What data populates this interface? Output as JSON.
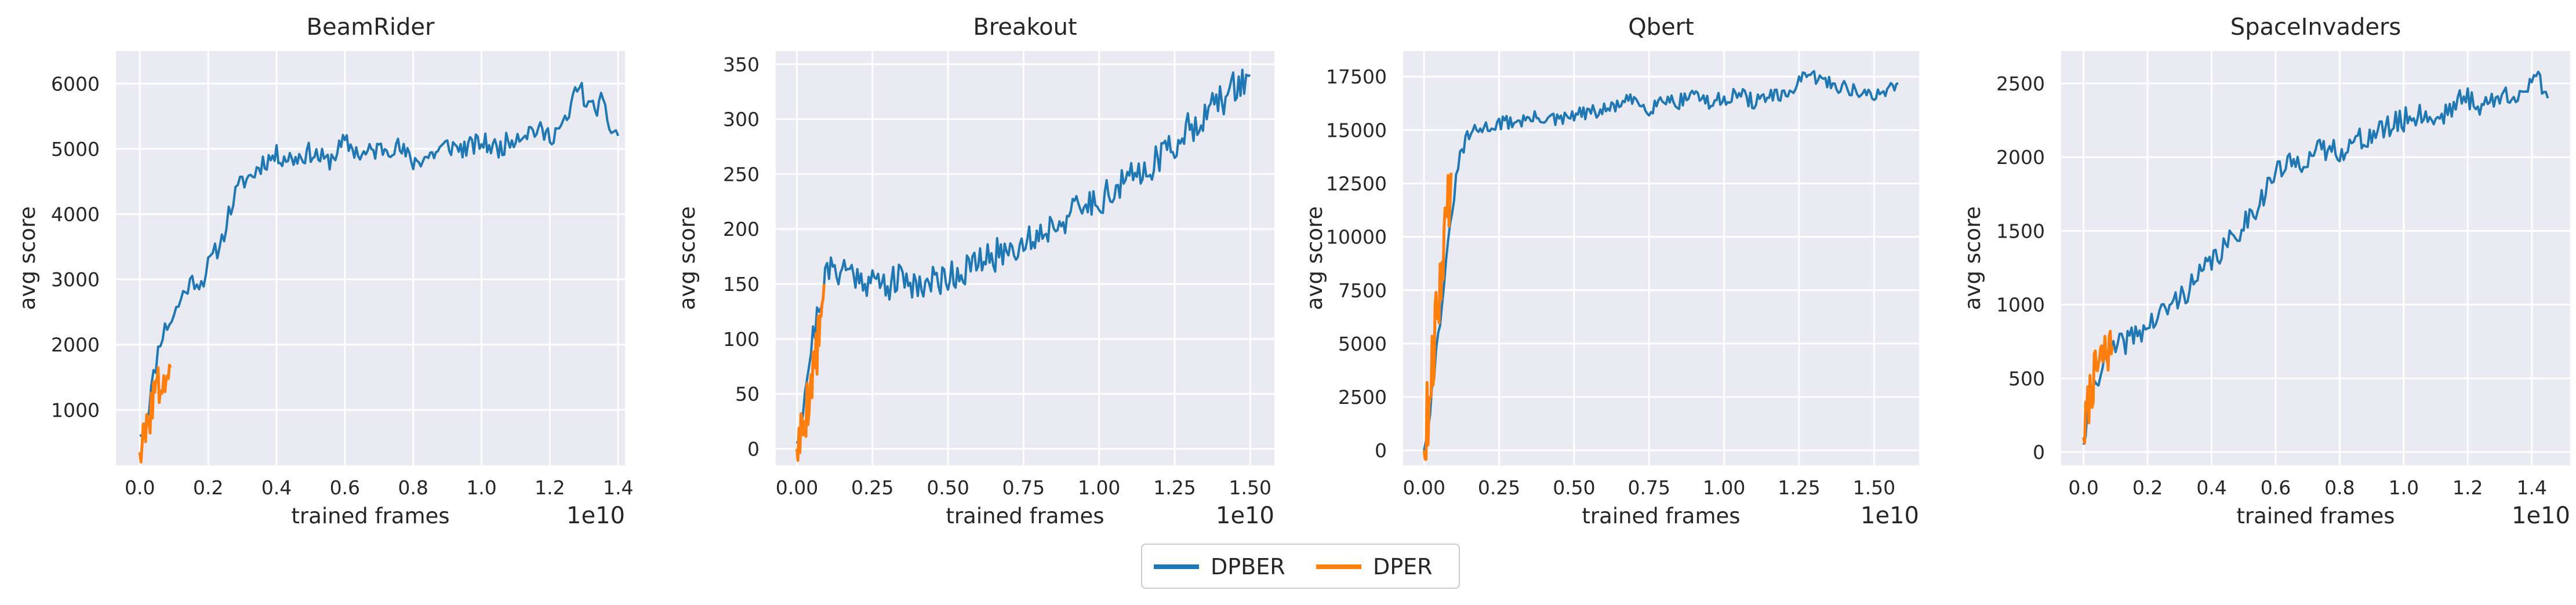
{
  "colors": {
    "DPBER": "#1f77b4",
    "DPER": "#ff7f0e",
    "plot_bg": "#eaeaf2",
    "grid": "#ffffff",
    "text": "#262626"
  },
  "legend": {
    "position": "bottom-center",
    "entries": [
      {
        "name": "DPBER",
        "color": "#1f77b4"
      },
      {
        "name": "DPER",
        "color": "#ff7f0e"
      }
    ]
  },
  "chart_data": [
    {
      "type": "line",
      "title": "BeamRider",
      "xlabel": "trained frames",
      "ylabel": "avg score",
      "x_offset_label": "1e10",
      "xlim": [
        -0.07,
        1.42
      ],
      "ylim": [
        150,
        6500
      ],
      "grid": true,
      "xticks": [
        0.0,
        0.2,
        0.4,
        0.6,
        0.8,
        1.0,
        1.2,
        1.4
      ],
      "xtick_labels": [
        "0.0",
        "0.2",
        "0.4",
        "0.6",
        "0.8",
        "1.0",
        "1.2",
        "1.4"
      ],
      "yticks": [
        1000,
        2000,
        3000,
        4000,
        5000,
        6000
      ],
      "ytick_labels": [
        "1000",
        "2000",
        "3000",
        "4000",
        "5000",
        "6000"
      ],
      "series": [
        {
          "name": "DPBER",
          "color": "#1f77b4",
          "noise": 0.025,
          "seed": 11,
          "x": [
            0.0,
            0.02,
            0.04,
            0.06,
            0.08,
            0.1,
            0.12,
            0.14,
            0.16,
            0.18,
            0.2,
            0.22,
            0.24,
            0.26,
            0.28,
            0.3,
            0.33,
            0.36,
            0.4,
            0.45,
            0.5,
            0.55,
            0.6,
            0.65,
            0.7,
            0.75,
            0.8,
            0.85,
            0.9,
            0.95,
            1.0,
            1.05,
            1.1,
            1.15,
            1.2,
            1.25,
            1.28,
            1.3,
            1.32,
            1.35,
            1.38,
            1.4
          ],
          "y": [
            600,
            900,
            1500,
            2100,
            2300,
            2450,
            2700,
            2900,
            3000,
            2950,
            3200,
            3400,
            3600,
            4000,
            4300,
            4500,
            4600,
            4800,
            4900,
            4850,
            4950,
            4800,
            5100,
            4900,
            5000,
            5050,
            4800,
            4900,
            5050,
            5000,
            5100,
            5000,
            5200,
            5300,
            5200,
            5400,
            6000,
            5800,
            5600,
            5700,
            5300,
            5200
          ]
        },
        {
          "name": "DPER",
          "color": "#ff7f0e",
          "noise": 0.06,
          "seed": 3,
          "x": [
            0.0,
            0.01,
            0.02,
            0.03,
            0.04,
            0.05,
            0.06,
            0.07,
            0.08,
            0.09
          ],
          "y": [
            350,
            500,
            650,
            1000,
            1200,
            1300,
            1400,
            1450,
            1550,
            1650
          ]
        }
      ]
    },
    {
      "type": "line",
      "title": "Breakout",
      "xlabel": "trained frames",
      "ylabel": "avg score",
      "x_offset_label": "1e10",
      "xlim": [
        -0.07,
        1.58
      ],
      "ylim": [
        -15,
        362
      ],
      "grid": true,
      "xticks": [
        0.0,
        0.25,
        0.5,
        0.75,
        1.0,
        1.25,
        1.5
      ],
      "xtick_labels": [
        "0.00",
        "0.25",
        "0.50",
        "0.75",
        "1.00",
        "1.25",
        "1.50"
      ],
      "yticks": [
        0,
        50,
        100,
        150,
        200,
        250,
        300,
        350
      ],
      "ytick_labels": [
        "0",
        "50",
        "100",
        "150",
        "200",
        "250",
        "300",
        "350"
      ],
      "series": [
        {
          "name": "DPBER",
          "color": "#1f77b4",
          "noise": 0.04,
          "seed": 21,
          "x": [
            0.0,
            0.02,
            0.04,
            0.06,
            0.08,
            0.1,
            0.15,
            0.2,
            0.25,
            0.3,
            0.35,
            0.4,
            0.45,
            0.5,
            0.55,
            0.6,
            0.65,
            0.7,
            0.75,
            0.8,
            0.85,
            0.9,
            0.95,
            1.0,
            1.05,
            1.1,
            1.15,
            1.2,
            1.25,
            1.3,
            1.35,
            1.4,
            1.45,
            1.48,
            1.5
          ],
          "y": [
            5,
            40,
            80,
            110,
            140,
            160,
            165,
            158,
            152,
            150,
            155,
            150,
            152,
            158,
            162,
            168,
            175,
            182,
            188,
            195,
            205,
            212,
            220,
            228,
            235,
            245,
            255,
            265,
            278,
            292,
            305,
            315,
            330,
            335,
            340
          ]
        },
        {
          "name": "DPER",
          "color": "#ff7f0e",
          "noise": 0.07,
          "seed": 5,
          "x": [
            0.0,
            0.01,
            0.02,
            0.03,
            0.04,
            0.05,
            0.06,
            0.07,
            0.08,
            0.09
          ],
          "y": [
            0,
            10,
            20,
            35,
            50,
            65,
            80,
            95,
            115,
            150
          ]
        }
      ]
    },
    {
      "type": "line",
      "title": "Qbert",
      "xlabel": "trained frames",
      "ylabel": "avg score",
      "x_offset_label": "1e10",
      "xlim": [
        -0.07,
        1.65
      ],
      "ylim": [
        -700,
        18700
      ],
      "grid": true,
      "xticks": [
        0.0,
        0.25,
        0.5,
        0.75,
        1.0,
        1.25,
        1.5
      ],
      "xtick_labels": [
        "0.00",
        "0.25",
        "0.50",
        "0.75",
        "1.00",
        "1.25",
        "1.50"
      ],
      "yticks": [
        0,
        2500,
        5000,
        7500,
        10000,
        12500,
        15000,
        17500
      ],
      "ytick_labels": [
        "0",
        "2500",
        "5000",
        "7500",
        "10000",
        "12500",
        "15000",
        "17500"
      ],
      "series": [
        {
          "name": "DPBER",
          "color": "#1f77b4",
          "noise": 0.018,
          "seed": 31,
          "x": [
            0.0,
            0.02,
            0.04,
            0.06,
            0.08,
            0.1,
            0.12,
            0.15,
            0.2,
            0.25,
            0.3,
            0.35,
            0.4,
            0.45,
            0.5,
            0.55,
            0.6,
            0.65,
            0.7,
            0.75,
            0.8,
            0.85,
            0.9,
            0.95,
            1.0,
            1.05,
            1.1,
            1.15,
            1.2,
            1.25,
            1.3,
            1.35,
            1.4,
            1.45,
            1.5,
            1.55,
            1.58
          ],
          "y": [
            0,
            2000,
            4500,
            7000,
            9500,
            12000,
            13800,
            14800,
            15100,
            15300,
            15400,
            15500,
            15600,
            15400,
            15700,
            15800,
            15900,
            16200,
            16400,
            16000,
            16500,
            16300,
            16800,
            16200,
            16500,
            16700,
            16300,
            16600,
            16500,
            17300,
            17500,
            17200,
            17000,
            16800,
            16500,
            17000,
            17200
          ]
        },
        {
          "name": "DPER",
          "color": "#ff7f0e",
          "noise": 0.09,
          "seed": 9,
          "x": [
            0.0,
            0.01,
            0.02,
            0.03,
            0.04,
            0.05,
            0.06,
            0.07,
            0.08,
            0.09
          ],
          "y": [
            0,
            1500,
            3000,
            4500,
            6000,
            7500,
            9000,
            10500,
            11500,
            13000
          ]
        }
      ]
    },
    {
      "type": "line",
      "title": "SpaceInvaders",
      "xlabel": "trained frames",
      "ylabel": "avg score",
      "x_offset_label": "1e10",
      "xlim": [
        -0.07,
        1.52
      ],
      "ylim": [
        -90,
        2720
      ],
      "grid": true,
      "xticks": [
        0.0,
        0.2,
        0.4,
        0.6,
        0.8,
        1.0,
        1.2,
        1.4
      ],
      "xtick_labels": [
        "0.0",
        "0.2",
        "0.4",
        "0.6",
        "0.8",
        "1.0",
        "1.2",
        "1.4"
      ],
      "yticks": [
        0,
        500,
        1000,
        1500,
        2000,
        2500
      ],
      "ytick_labels": [
        "0",
        "500",
        "1000",
        "1500",
        "2000",
        "2500"
      ],
      "series": [
        {
          "name": "DPBER",
          "color": "#1f77b4",
          "noise": 0.03,
          "seed": 41,
          "x": [
            0.0,
            0.02,
            0.04,
            0.06,
            0.08,
            0.1,
            0.15,
            0.2,
            0.25,
            0.3,
            0.35,
            0.4,
            0.45,
            0.5,
            0.55,
            0.6,
            0.65,
            0.7,
            0.75,
            0.8,
            0.85,
            0.9,
            0.95,
            1.0,
            1.05,
            1.1,
            1.15,
            1.2,
            1.25,
            1.3,
            1.35,
            1.4,
            1.42,
            1.45
          ],
          "y": [
            50,
            350,
            500,
            600,
            650,
            700,
            780,
            850,
            950,
            1050,
            1150,
            1300,
            1400,
            1550,
            1700,
            1900,
            1950,
            2000,
            2050,
            2050,
            2100,
            2150,
            2200,
            2250,
            2300,
            2250,
            2350,
            2400,
            2350,
            2400,
            2450,
            2450,
            2550,
            2400
          ]
        },
        {
          "name": "DPER",
          "color": "#ff7f0e",
          "noise": 0.06,
          "seed": 7,
          "x": [
            0.0,
            0.01,
            0.02,
            0.03,
            0.04,
            0.05,
            0.06,
            0.07,
            0.08,
            0.09
          ],
          "y": [
            100,
            250,
            400,
            480,
            550,
            600,
            640,
            680,
            700,
            720
          ]
        }
      ]
    }
  ]
}
